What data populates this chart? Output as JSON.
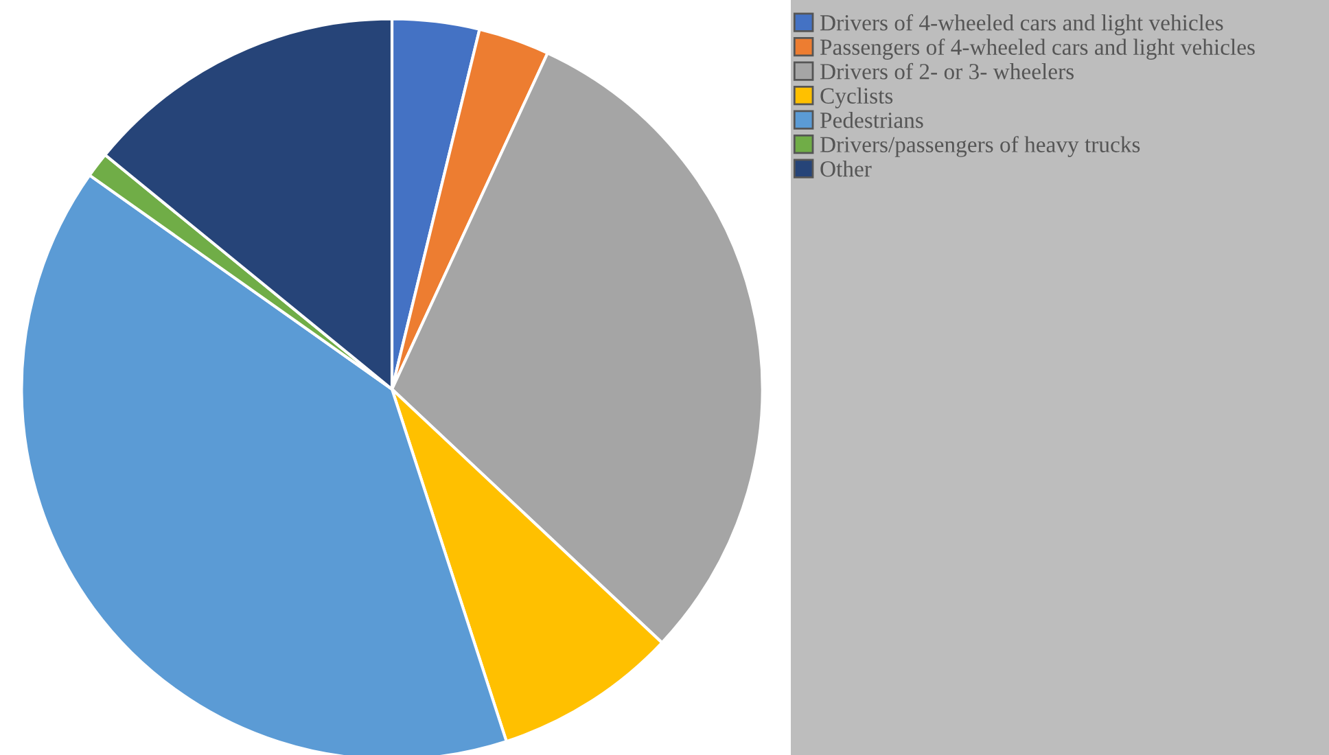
{
  "chart_data": {
    "type": "pie",
    "categories": [
      "Drivers of 4-wheeled cars and light vehicles",
      "Passengers of 4-wheeled cars and light vehicles",
      "Drivers of 2- or 3- wheelers",
      "Cyclists",
      "Pedestrians",
      "Drivers/passengers of heavy trucks",
      "Other"
    ],
    "values": [
      3.8,
      3.1,
      30.1,
      8.0,
      39.8,
      1.1,
      14.1
    ],
    "colors": [
      "#4472c4",
      "#ed7d31",
      "#a5a5a5",
      "#ffc000",
      "#5b9bd5",
      "#70ad47",
      "#264478"
    ],
    "legend": "right"
  }
}
